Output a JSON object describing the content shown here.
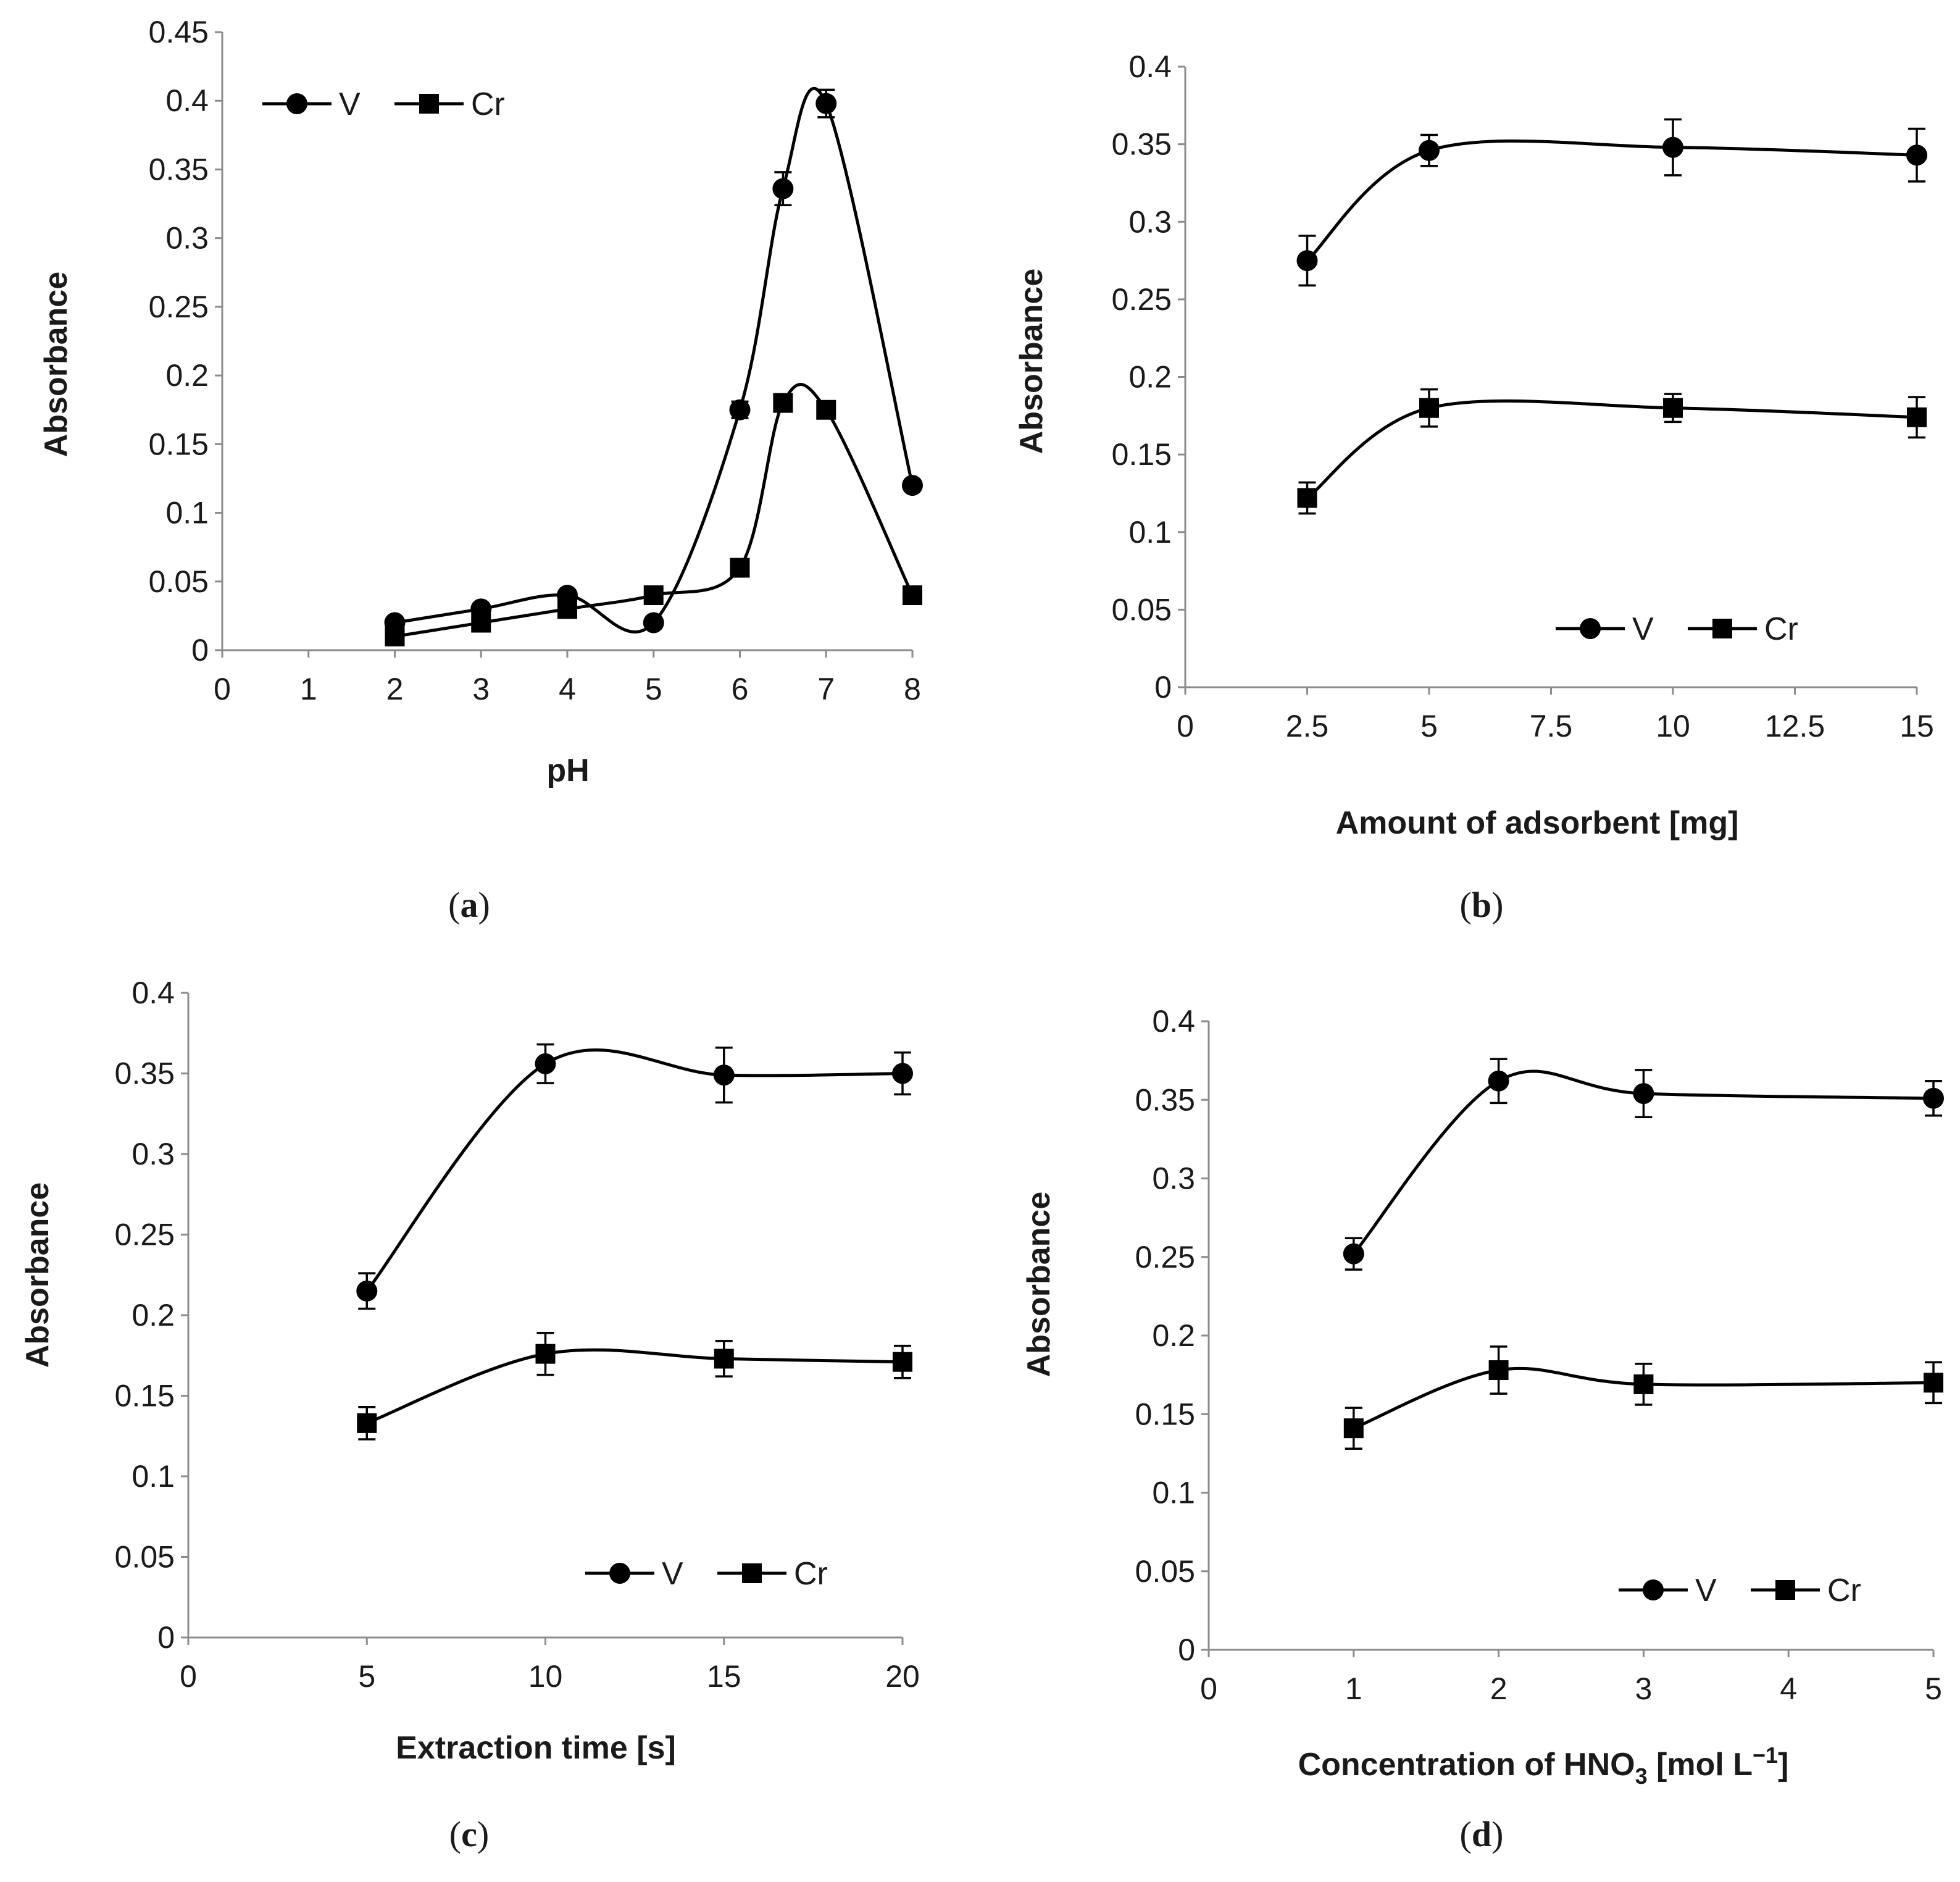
{
  "chart_data": [
    {
      "type": "line",
      "panel_label": "a",
      "xlabel": "pH",
      "ylabel": "Absorbance",
      "xlim": [
        0,
        8
      ],
      "ylim": [
        0,
        0.45
      ],
      "xticks": [
        "0",
        "1",
        "2",
        "3",
        "4",
        "5",
        "6",
        "7",
        "8"
      ],
      "yticks": [
        "0",
        "0.05",
        "0.1",
        "0.15",
        "0.2",
        "0.25",
        "0.3",
        "0.35",
        "0.4",
        "0.45"
      ],
      "legend_position": "top-left",
      "series": [
        {
          "name": "V",
          "marker": "circle",
          "x": [
            2,
            3,
            4,
            5,
            6,
            6.5,
            7,
            8
          ],
          "y": [
            0.02,
            0.03,
            0.04,
            0.02,
            0.175,
            0.336,
            0.398,
            0.12
          ],
          "err": [
            0,
            0,
            0,
            0,
            0.006,
            0.012,
            0.01,
            0
          ]
        },
        {
          "name": "Cr",
          "marker": "square",
          "x": [
            2,
            3,
            4,
            5,
            6,
            6.5,
            7,
            8
          ],
          "y": [
            0.01,
            0.02,
            0.03,
            0.04,
            0.06,
            0.18,
            0.175,
            0.04
          ],
          "err": [
            0,
            0,
            0,
            0,
            0,
            0.004,
            0.004,
            0
          ]
        }
      ]
    },
    {
      "type": "line",
      "panel_label": "b",
      "xlabel": "Amount of adsorbent [mg]",
      "ylabel": "Absorbance",
      "xlim": [
        0,
        15
      ],
      "ylim": [
        0,
        0.4
      ],
      "xticks": [
        "0",
        "2.5",
        "5",
        "7.5",
        "10",
        "12.5",
        "15"
      ],
      "yticks": [
        "0",
        "0.05",
        "0.1",
        "0.15",
        "0.2",
        "0.25",
        "0.3",
        "0.35",
        "0.4"
      ],
      "legend_position": "bottom-right",
      "series": [
        {
          "name": "V",
          "marker": "circle",
          "x": [
            2.5,
            5,
            10,
            15
          ],
          "y": [
            0.275,
            0.346,
            0.348,
            0.343
          ],
          "err": [
            0.016,
            0.01,
            0.018,
            0.017
          ]
        },
        {
          "name": "Cr",
          "marker": "square",
          "x": [
            2.5,
            5,
            10,
            15
          ],
          "y": [
            0.122,
            0.18,
            0.18,
            0.174
          ],
          "err": [
            0.01,
            0.012,
            0.009,
            0.013
          ]
        }
      ]
    },
    {
      "type": "line",
      "panel_label": "c",
      "xlabel": "Extraction time [s]",
      "ylabel": "Absorbance",
      "xlim": [
        0,
        20
      ],
      "ylim": [
        0,
        0.4
      ],
      "xticks": [
        "0",
        "5",
        "10",
        "15",
        "20"
      ],
      "yticks": [
        "0",
        "0.05",
        "0.1",
        "0.15",
        "0.2",
        "0.25",
        "0.3",
        "0.35",
        "0.4"
      ],
      "legend_position": "bottom-right",
      "series": [
        {
          "name": "V",
          "marker": "circle",
          "x": [
            5,
            10,
            15,
            20
          ],
          "y": [
            0.215,
            0.356,
            0.349,
            0.35
          ],
          "err": [
            0.011,
            0.012,
            0.017,
            0.013
          ]
        },
        {
          "name": "Cr",
          "marker": "square",
          "x": [
            5,
            10,
            15,
            20
          ],
          "y": [
            0.133,
            0.176,
            0.173,
            0.171
          ],
          "err": [
            0.01,
            0.013,
            0.011,
            0.01
          ]
        }
      ]
    },
    {
      "type": "line",
      "panel_label": "d",
      "xlabel_main": "Concentration of HNO",
      "xlabel_sub": "3",
      "xlabel_tail": " [mol L",
      "xlabel_sup": "−1",
      "xlabel_end": "]",
      "ylabel": "Absorbance",
      "xlim": [
        0,
        5
      ],
      "ylim": [
        0,
        0.4
      ],
      "xticks": [
        "0",
        "1",
        "2",
        "3",
        "4",
        "5"
      ],
      "yticks": [
        "0",
        "0.05",
        "0.1",
        "0.15",
        "0.2",
        "0.25",
        "0.3",
        "0.35",
        "0.4"
      ],
      "legend_position": "bottom-right",
      "series": [
        {
          "name": "V",
          "marker": "circle",
          "x": [
            1,
            2,
            3,
            5
          ],
          "y": [
            0.252,
            0.362,
            0.354,
            0.351
          ],
          "err": [
            0.01,
            0.014,
            0.015,
            0.011
          ]
        },
        {
          "name": "Cr",
          "marker": "square",
          "x": [
            1,
            2,
            3,
            5
          ],
          "y": [
            0.141,
            0.178,
            0.169,
            0.17
          ],
          "err": [
            0.013,
            0.015,
            0.013,
            0.013
          ]
        }
      ]
    }
  ]
}
